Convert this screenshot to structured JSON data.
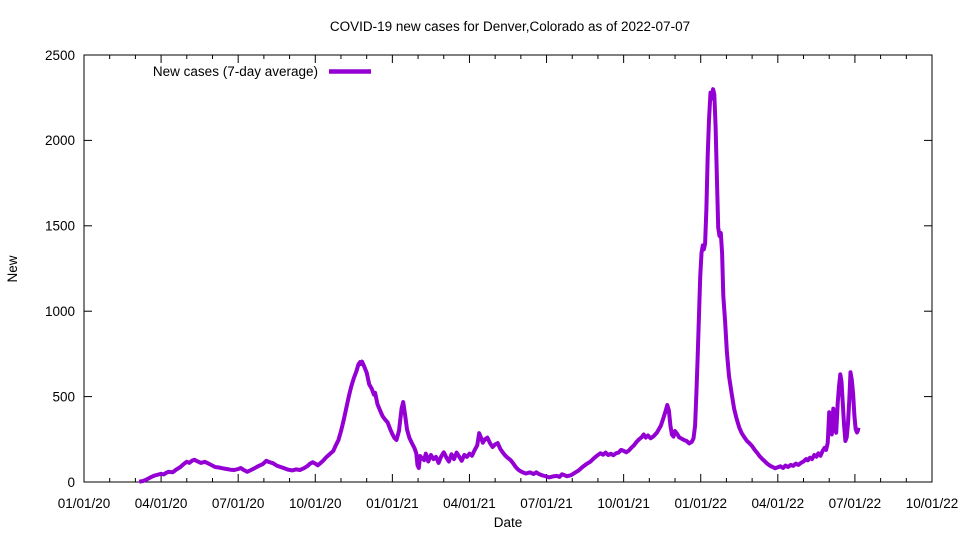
{
  "chart_data": {
    "type": "line",
    "title": "COVID-19 new cases for Denver,Colorado as of 2022-07-07",
    "xlabel": "Date",
    "ylabel": "New",
    "legend_position": "top-left-inside",
    "grid": false,
    "ylim": [
      0,
      2500
    ],
    "yticks": [
      0,
      500,
      1000,
      1500,
      2000,
      2500
    ],
    "x_axis": {
      "start_date": "2020-01-01",
      "end_date": "2022-10-01",
      "major_tick_interval_months": 3,
      "minor_tick_interval_months": 1,
      "tick_labels": [
        "01/01/20",
        "04/01/20",
        "07/01/20",
        "10/01/20",
        "01/01/21",
        "04/01/21",
        "07/01/21",
        "10/01/21",
        "01/01/22",
        "04/01/22",
        "07/01/22",
        "10/01/22"
      ]
    },
    "colors": {
      "line": "#9400D3",
      "axis": "#000000",
      "text": "#000000",
      "background": "#ffffff"
    },
    "series": [
      {
        "name": "New cases (7-day average)",
        "color": "#9400D3",
        "x_unit": "months_since_2020-01-01",
        "points": [
          [
            2.15,
            2
          ],
          [
            2.3,
            6
          ],
          [
            2.45,
            16
          ],
          [
            2.6,
            28
          ],
          [
            2.75,
            38
          ],
          [
            2.9,
            44
          ],
          [
            3.0,
            48
          ],
          [
            3.1,
            44
          ],
          [
            3.2,
            54
          ],
          [
            3.3,
            60
          ],
          [
            3.45,
            57
          ],
          [
            3.6,
            74
          ],
          [
            3.75,
            88
          ],
          [
            3.9,
            108
          ],
          [
            4.0,
            118
          ],
          [
            4.1,
            112
          ],
          [
            4.2,
            124
          ],
          [
            4.3,
            130
          ],
          [
            4.4,
            122
          ],
          [
            4.55,
            112
          ],
          [
            4.7,
            118
          ],
          [
            4.85,
            108
          ],
          [
            5.0,
            96
          ],
          [
            5.1,
            88
          ],
          [
            5.25,
            85
          ],
          [
            5.4,
            80
          ],
          [
            5.55,
            76
          ],
          [
            5.7,
            72
          ],
          [
            5.85,
            70
          ],
          [
            6.0,
            76
          ],
          [
            6.1,
            82
          ],
          [
            6.2,
            72
          ],
          [
            6.35,
            60
          ],
          [
            6.5,
            70
          ],
          [
            6.65,
            82
          ],
          [
            6.8,
            94
          ],
          [
            6.95,
            104
          ],
          [
            7.1,
            124
          ],
          [
            7.2,
            117
          ],
          [
            7.35,
            110
          ],
          [
            7.5,
            96
          ],
          [
            7.65,
            88
          ],
          [
            7.8,
            80
          ],
          [
            7.95,
            72
          ],
          [
            8.1,
            68
          ],
          [
            8.25,
            74
          ],
          [
            8.4,
            70
          ],
          [
            8.55,
            80
          ],
          [
            8.7,
            94
          ],
          [
            8.8,
            108
          ],
          [
            8.9,
            116
          ],
          [
            9.0,
            108
          ],
          [
            9.1,
            98
          ],
          [
            9.2,
            110
          ],
          [
            9.3,
            124
          ],
          [
            9.45,
            148
          ],
          [
            9.6,
            168
          ],
          [
            9.7,
            182
          ],
          [
            9.8,
            215
          ],
          [
            9.9,
            245
          ],
          [
            10.0,
            298
          ],
          [
            10.1,
            358
          ],
          [
            10.2,
            428
          ],
          [
            10.3,
            498
          ],
          [
            10.4,
            558
          ],
          [
            10.5,
            608
          ],
          [
            10.6,
            648
          ],
          [
            10.68,
            688
          ],
          [
            10.74,
            702
          ],
          [
            10.78,
            690
          ],
          [
            10.82,
            705
          ],
          [
            10.9,
            678
          ],
          [
            11.0,
            640
          ],
          [
            11.1,
            572
          ],
          [
            11.2,
            545
          ],
          [
            11.28,
            512
          ],
          [
            11.33,
            522
          ],
          [
            11.42,
            455
          ],
          [
            11.52,
            420
          ],
          [
            11.62,
            385
          ],
          [
            11.72,
            365
          ],
          [
            11.82,
            348
          ],
          [
            11.92,
            308
          ],
          [
            12.0,
            280
          ],
          [
            12.08,
            258
          ],
          [
            12.16,
            246
          ],
          [
            12.26,
            300
          ],
          [
            12.36,
            432
          ],
          [
            12.42,
            468
          ],
          [
            12.5,
            388
          ],
          [
            12.57,
            308
          ],
          [
            12.66,
            260
          ],
          [
            12.76,
            228
          ],
          [
            12.86,
            198
          ],
          [
            12.93,
            168
          ],
          [
            12.98,
            98
          ],
          [
            13.03,
            82
          ],
          [
            13.08,
            152
          ],
          [
            13.16,
            138
          ],
          [
            13.24,
            128
          ],
          [
            13.3,
            166
          ],
          [
            13.4,
            120
          ],
          [
            13.5,
            158
          ],
          [
            13.6,
            134
          ],
          [
            13.7,
            147
          ],
          [
            13.8,
            112
          ],
          [
            13.9,
            150
          ],
          [
            14.0,
            174
          ],
          [
            14.1,
            144
          ],
          [
            14.2,
            120
          ],
          [
            14.3,
            162
          ],
          [
            14.4,
            134
          ],
          [
            14.5,
            172
          ],
          [
            14.6,
            148
          ],
          [
            14.7,
            124
          ],
          [
            14.8,
            158
          ],
          [
            14.9,
            147
          ],
          [
            15.0,
            166
          ],
          [
            15.1,
            154
          ],
          [
            15.2,
            186
          ],
          [
            15.3,
            214
          ],
          [
            15.38,
            286
          ],
          [
            15.45,
            260
          ],
          [
            15.52,
            230
          ],
          [
            15.6,
            250
          ],
          [
            15.7,
            260
          ],
          [
            15.8,
            228
          ],
          [
            15.9,
            205
          ],
          [
            16.0,
            220
          ],
          [
            16.1,
            228
          ],
          [
            16.2,
            194
          ],
          [
            16.3,
            172
          ],
          [
            16.4,
            154
          ],
          [
            16.5,
            140
          ],
          [
            16.6,
            128
          ],
          [
            16.7,
            110
          ],
          [
            16.8,
            88
          ],
          [
            16.9,
            72
          ],
          [
            17.0,
            62
          ],
          [
            17.1,
            55
          ],
          [
            17.2,
            50
          ],
          [
            17.35,
            56
          ],
          [
            17.5,
            47
          ],
          [
            17.6,
            57
          ],
          [
            17.7,
            47
          ],
          [
            17.85,
            38
          ],
          [
            18.0,
            32
          ],
          [
            18.1,
            27
          ],
          [
            18.25,
            33
          ],
          [
            18.4,
            36
          ],
          [
            18.5,
            30
          ],
          [
            18.6,
            45
          ],
          [
            18.7,
            40
          ],
          [
            18.8,
            34
          ],
          [
            18.95,
            40
          ],
          [
            19.1,
            54
          ],
          [
            19.25,
            68
          ],
          [
            19.4,
            88
          ],
          [
            19.55,
            105
          ],
          [
            19.7,
            118
          ],
          [
            19.85,
            140
          ],
          [
            20.0,
            158
          ],
          [
            20.1,
            168
          ],
          [
            20.2,
            160
          ],
          [
            20.3,
            172
          ],
          [
            20.4,
            158
          ],
          [
            20.5,
            165
          ],
          [
            20.6,
            157
          ],
          [
            20.7,
            168
          ],
          [
            20.8,
            172
          ],
          [
            20.9,
            188
          ],
          [
            21.0,
            182
          ],
          [
            21.1,
            174
          ],
          [
            21.2,
            184
          ],
          [
            21.3,
            200
          ],
          [
            21.4,
            214
          ],
          [
            21.5,
            234
          ],
          [
            21.6,
            250
          ],
          [
            21.7,
            262
          ],
          [
            21.78,
            278
          ],
          [
            21.86,
            260
          ],
          [
            21.95,
            272
          ],
          [
            22.05,
            256
          ],
          [
            22.15,
            266
          ],
          [
            22.3,
            290
          ],
          [
            22.45,
            330
          ],
          [
            22.55,
            376
          ],
          [
            22.65,
            424
          ],
          [
            22.7,
            450
          ],
          [
            22.76,
            418
          ],
          [
            22.82,
            330
          ],
          [
            22.88,
            278
          ],
          [
            22.94,
            266
          ],
          [
            23.0,
            298
          ],
          [
            23.08,
            282
          ],
          [
            23.16,
            262
          ],
          [
            23.25,
            254
          ],
          [
            23.35,
            246
          ],
          [
            23.45,
            240
          ],
          [
            23.55,
            226
          ],
          [
            23.65,
            235
          ],
          [
            23.72,
            255
          ],
          [
            23.78,
            330
          ],
          [
            23.83,
            520
          ],
          [
            23.88,
            720
          ],
          [
            23.93,
            960
          ],
          [
            23.98,
            1200
          ],
          [
            24.03,
            1340
          ],
          [
            24.08,
            1385
          ],
          [
            24.12,
            1362
          ],
          [
            24.17,
            1395
          ],
          [
            24.22,
            1600
          ],
          [
            24.27,
            1910
          ],
          [
            24.32,
            2120
          ],
          [
            24.38,
            2280
          ],
          [
            24.43,
            2245
          ],
          [
            24.48,
            2300
          ],
          [
            24.53,
            2270
          ],
          [
            24.58,
            2080
          ],
          [
            24.63,
            1780
          ],
          [
            24.68,
            1490
          ],
          [
            24.73,
            1440
          ],
          [
            24.78,
            1458
          ],
          [
            24.83,
            1340
          ],
          [
            24.88,
            1090
          ],
          [
            24.95,
            940
          ],
          [
            25.02,
            760
          ],
          [
            25.1,
            620
          ],
          [
            25.2,
            520
          ],
          [
            25.3,
            430
          ],
          [
            25.4,
            368
          ],
          [
            25.5,
            318
          ],
          [
            25.6,
            285
          ],
          [
            25.7,
            262
          ],
          [
            25.8,
            240
          ],
          [
            25.9,
            226
          ],
          [
            26.0,
            210
          ],
          [
            26.1,
            188
          ],
          [
            26.2,
            170
          ],
          [
            26.3,
            150
          ],
          [
            26.4,
            134
          ],
          [
            26.5,
            120
          ],
          [
            26.6,
            106
          ],
          [
            26.7,
            95
          ],
          [
            26.8,
            88
          ],
          [
            26.9,
            80
          ],
          [
            27.0,
            86
          ],
          [
            27.1,
            92
          ],
          [
            27.2,
            82
          ],
          [
            27.3,
            96
          ],
          [
            27.4,
            88
          ],
          [
            27.5,
            100
          ],
          [
            27.6,
            94
          ],
          [
            27.7,
            108
          ],
          [
            27.8,
            100
          ],
          [
            27.9,
            112
          ],
          [
            28.0,
            120
          ],
          [
            28.1,
            134
          ],
          [
            28.17,
            127
          ],
          [
            28.25,
            142
          ],
          [
            28.33,
            134
          ],
          [
            28.42,
            158
          ],
          [
            28.5,
            148
          ],
          [
            28.58,
            168
          ],
          [
            28.66,
            154
          ],
          [
            28.75,
            184
          ],
          [
            28.82,
            200
          ],
          [
            28.88,
            188
          ],
          [
            28.94,
            228
          ],
          [
            29.0,
            408
          ],
          [
            29.05,
            302
          ],
          [
            29.1,
            278
          ],
          [
            29.16,
            430
          ],
          [
            29.22,
            308
          ],
          [
            29.27,
            288
          ],
          [
            29.33,
            462
          ],
          [
            29.38,
            560
          ],
          [
            29.43,
            630
          ],
          [
            29.48,
            588
          ],
          [
            29.53,
            458
          ],
          [
            29.58,
            330
          ],
          [
            29.63,
            240
          ],
          [
            29.68,
            262
          ],
          [
            29.73,
            342
          ],
          [
            29.78,
            482
          ],
          [
            29.83,
            642
          ],
          [
            29.88,
            598
          ],
          [
            29.93,
            518
          ],
          [
            29.98,
            388
          ],
          [
            30.03,
            308
          ],
          [
            30.08,
            290
          ],
          [
            30.13,
            306
          ],
          [
            30.2,
            304
          ]
        ]
      }
    ]
  }
}
